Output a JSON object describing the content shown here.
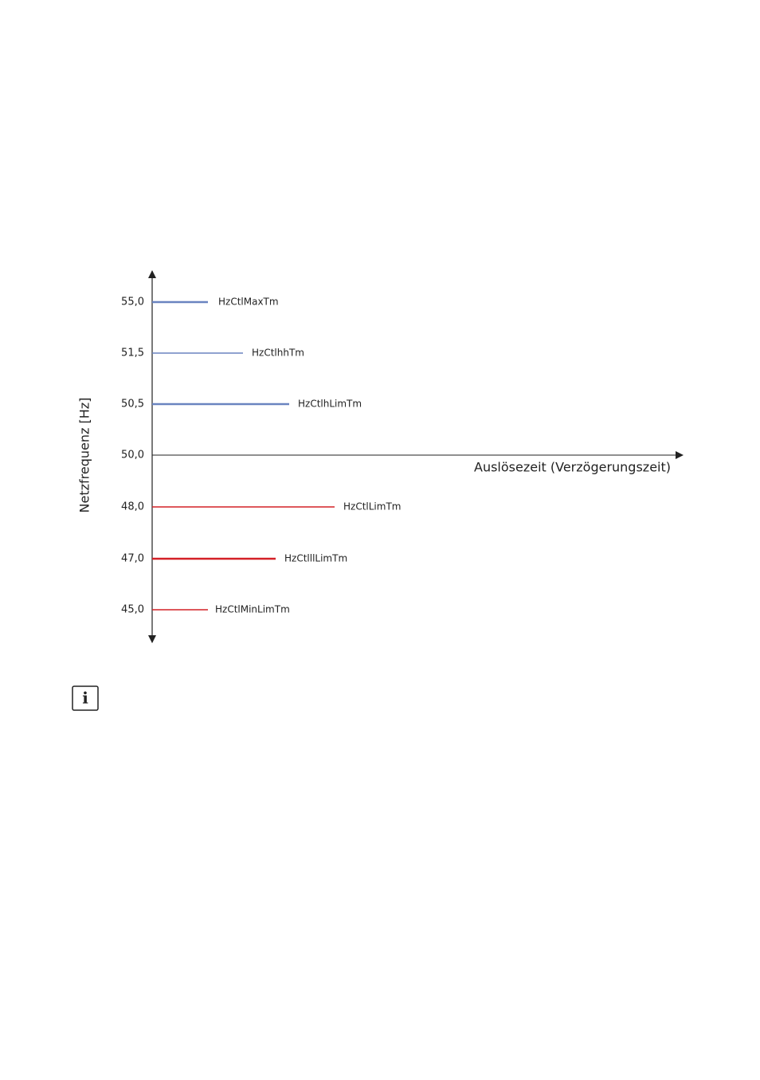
{
  "diagram": {
    "y_axis_label": "Netzfrequenz [Hz]",
    "x_axis_label": "Auslösezeit (Verzögerungszeit)",
    "levels": [
      {
        "value": "55,0",
        "parameter": "HzCtlMaxTm",
        "color": "#6a84c0"
      },
      {
        "value": "51,5",
        "parameter": "HzCtlhhTm",
        "color": "#6a84c0"
      },
      {
        "value": "50,5",
        "parameter": "HzCtlhLimTm",
        "color": "#6a84c0"
      },
      {
        "value": "50,0"
      },
      {
        "value": "48,0",
        "parameter": "HzCtlLimTm",
        "color": "#d42027"
      },
      {
        "value": "47,0",
        "parameter": "HzCtlllLimTm",
        "color": "#d42027"
      },
      {
        "value": "45,0",
        "parameter": "HzCtlMinLimTm",
        "color": "#d42027"
      }
    ]
  }
}
